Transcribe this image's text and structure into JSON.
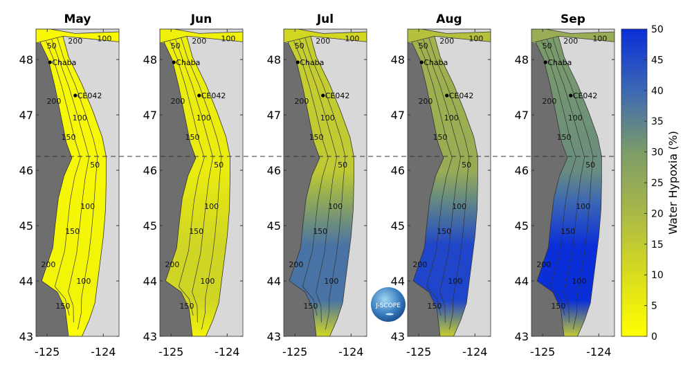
{
  "chart_data": {
    "type": "heatmap",
    "panels": [
      {
        "title": "May",
        "north_level": 2,
        "south_level": 3
      },
      {
        "title": "Jun",
        "north_level": 5,
        "south_level": 12
      },
      {
        "title": "Jul",
        "north_level": 14,
        "south_level": 38
      },
      {
        "title": "Aug",
        "north_level": 22,
        "south_level": 46
      },
      {
        "title": "Sep",
        "north_level": 30,
        "south_level": 50
      }
    ],
    "ylim": [
      43,
      48.55
    ],
    "xlim": [
      -125.2,
      -123.72
    ],
    "yticks": [
      43,
      44,
      45,
      46,
      47,
      48
    ],
    "xticks": [
      -125,
      -124
    ],
    "xtick_labels": [
      "-125",
      "-124"
    ],
    "stations": [
      {
        "name": "Chaba",
        "lon": -124.95,
        "lat": 47.95
      },
      {
        "name": "CE042",
        "lon": -124.5,
        "lat": 47.35
      }
    ],
    "contour_labels": [
      "50",
      "100",
      "150",
      "200"
    ],
    "divider_lat": 46.25,
    "colorbar": {
      "label": "Water Hypoxia (%)",
      "range": [
        0,
        50
      ],
      "ticks": [
        0,
        5,
        10,
        15,
        20,
        25,
        30,
        35,
        40,
        45,
        50
      ],
      "colors": [
        "#ffff00",
        "#d8dc1c",
        "#aab848",
        "#7c9c68",
        "#3c68b4",
        "#0a2ed8"
      ]
    },
    "colors": {
      "ocean": "#6e6e6e",
      "land": "#d8d8d8"
    }
  },
  "logo": {
    "text": "J-SCOPE"
  }
}
